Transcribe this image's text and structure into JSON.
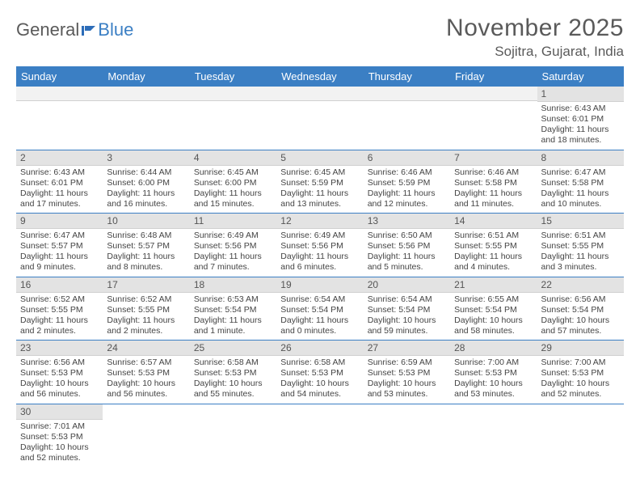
{
  "brand": {
    "part1": "General",
    "part2": "Blue"
  },
  "header": {
    "month_title": "November 2025",
    "location": "Sojitra, Gujarat, India"
  },
  "calendar": {
    "type": "month-grid",
    "columns": [
      "Sunday",
      "Monday",
      "Tuesday",
      "Wednesday",
      "Thursday",
      "Friday",
      "Saturday"
    ],
    "header_bg": "#3b7fc4",
    "header_fg": "#ffffff",
    "daynum_bg": "#e3e3e3",
    "daynum_empty_bg": "#f2f2f2",
    "row_border_color": "#3b7fc4",
    "body_text_color": "#444444",
    "font_size_body": 10.5,
    "font_size_header": 13,
    "weeks": [
      [
        null,
        null,
        null,
        null,
        null,
        null,
        {
          "n": "1",
          "sunrise": "Sunrise: 6:43 AM",
          "sunset": "Sunset: 6:01 PM",
          "daylight": "Daylight: 11 hours and 18 minutes."
        }
      ],
      [
        {
          "n": "2",
          "sunrise": "Sunrise: 6:43 AM",
          "sunset": "Sunset: 6:01 PM",
          "daylight": "Daylight: 11 hours and 17 minutes."
        },
        {
          "n": "3",
          "sunrise": "Sunrise: 6:44 AM",
          "sunset": "Sunset: 6:00 PM",
          "daylight": "Daylight: 11 hours and 16 minutes."
        },
        {
          "n": "4",
          "sunrise": "Sunrise: 6:45 AM",
          "sunset": "Sunset: 6:00 PM",
          "daylight": "Daylight: 11 hours and 15 minutes."
        },
        {
          "n": "5",
          "sunrise": "Sunrise: 6:45 AM",
          "sunset": "Sunset: 5:59 PM",
          "daylight": "Daylight: 11 hours and 13 minutes."
        },
        {
          "n": "6",
          "sunrise": "Sunrise: 6:46 AM",
          "sunset": "Sunset: 5:59 PM",
          "daylight": "Daylight: 11 hours and 12 minutes."
        },
        {
          "n": "7",
          "sunrise": "Sunrise: 6:46 AM",
          "sunset": "Sunset: 5:58 PM",
          "daylight": "Daylight: 11 hours and 11 minutes."
        },
        {
          "n": "8",
          "sunrise": "Sunrise: 6:47 AM",
          "sunset": "Sunset: 5:58 PM",
          "daylight": "Daylight: 11 hours and 10 minutes."
        }
      ],
      [
        {
          "n": "9",
          "sunrise": "Sunrise: 6:47 AM",
          "sunset": "Sunset: 5:57 PM",
          "daylight": "Daylight: 11 hours and 9 minutes."
        },
        {
          "n": "10",
          "sunrise": "Sunrise: 6:48 AM",
          "sunset": "Sunset: 5:57 PM",
          "daylight": "Daylight: 11 hours and 8 minutes."
        },
        {
          "n": "11",
          "sunrise": "Sunrise: 6:49 AM",
          "sunset": "Sunset: 5:56 PM",
          "daylight": "Daylight: 11 hours and 7 minutes."
        },
        {
          "n": "12",
          "sunrise": "Sunrise: 6:49 AM",
          "sunset": "Sunset: 5:56 PM",
          "daylight": "Daylight: 11 hours and 6 minutes."
        },
        {
          "n": "13",
          "sunrise": "Sunrise: 6:50 AM",
          "sunset": "Sunset: 5:56 PM",
          "daylight": "Daylight: 11 hours and 5 minutes."
        },
        {
          "n": "14",
          "sunrise": "Sunrise: 6:51 AM",
          "sunset": "Sunset: 5:55 PM",
          "daylight": "Daylight: 11 hours and 4 minutes."
        },
        {
          "n": "15",
          "sunrise": "Sunrise: 6:51 AM",
          "sunset": "Sunset: 5:55 PM",
          "daylight": "Daylight: 11 hours and 3 minutes."
        }
      ],
      [
        {
          "n": "16",
          "sunrise": "Sunrise: 6:52 AM",
          "sunset": "Sunset: 5:55 PM",
          "daylight": "Daylight: 11 hours and 2 minutes."
        },
        {
          "n": "17",
          "sunrise": "Sunrise: 6:52 AM",
          "sunset": "Sunset: 5:55 PM",
          "daylight": "Daylight: 11 hours and 2 minutes."
        },
        {
          "n": "18",
          "sunrise": "Sunrise: 6:53 AM",
          "sunset": "Sunset: 5:54 PM",
          "daylight": "Daylight: 11 hours and 1 minute."
        },
        {
          "n": "19",
          "sunrise": "Sunrise: 6:54 AM",
          "sunset": "Sunset: 5:54 PM",
          "daylight": "Daylight: 11 hours and 0 minutes."
        },
        {
          "n": "20",
          "sunrise": "Sunrise: 6:54 AM",
          "sunset": "Sunset: 5:54 PM",
          "daylight": "Daylight: 10 hours and 59 minutes."
        },
        {
          "n": "21",
          "sunrise": "Sunrise: 6:55 AM",
          "sunset": "Sunset: 5:54 PM",
          "daylight": "Daylight: 10 hours and 58 minutes."
        },
        {
          "n": "22",
          "sunrise": "Sunrise: 6:56 AM",
          "sunset": "Sunset: 5:54 PM",
          "daylight": "Daylight: 10 hours and 57 minutes."
        }
      ],
      [
        {
          "n": "23",
          "sunrise": "Sunrise: 6:56 AM",
          "sunset": "Sunset: 5:53 PM",
          "daylight": "Daylight: 10 hours and 56 minutes."
        },
        {
          "n": "24",
          "sunrise": "Sunrise: 6:57 AM",
          "sunset": "Sunset: 5:53 PM",
          "daylight": "Daylight: 10 hours and 56 minutes."
        },
        {
          "n": "25",
          "sunrise": "Sunrise: 6:58 AM",
          "sunset": "Sunset: 5:53 PM",
          "daylight": "Daylight: 10 hours and 55 minutes."
        },
        {
          "n": "26",
          "sunrise": "Sunrise: 6:58 AM",
          "sunset": "Sunset: 5:53 PM",
          "daylight": "Daylight: 10 hours and 54 minutes."
        },
        {
          "n": "27",
          "sunrise": "Sunrise: 6:59 AM",
          "sunset": "Sunset: 5:53 PM",
          "daylight": "Daylight: 10 hours and 53 minutes."
        },
        {
          "n": "28",
          "sunrise": "Sunrise: 7:00 AM",
          "sunset": "Sunset: 5:53 PM",
          "daylight": "Daylight: 10 hours and 53 minutes."
        },
        {
          "n": "29",
          "sunrise": "Sunrise: 7:00 AM",
          "sunset": "Sunset: 5:53 PM",
          "daylight": "Daylight: 10 hours and 52 minutes."
        }
      ],
      [
        {
          "n": "30",
          "sunrise": "Sunrise: 7:01 AM",
          "sunset": "Sunset: 5:53 PM",
          "daylight": "Daylight: 10 hours and 52 minutes."
        },
        null,
        null,
        null,
        null,
        null,
        null
      ]
    ]
  }
}
